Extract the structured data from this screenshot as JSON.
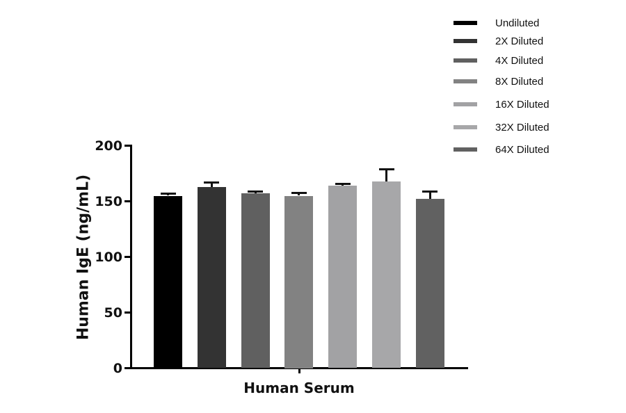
{
  "chart_data": {
    "type": "bar",
    "title": "",
    "xlabel": "Human Serum",
    "ylabel": "Human IgE (ng/mL)",
    "ylim": [
      0,
      200
    ],
    "yticks": [
      0,
      50,
      100,
      150,
      200
    ],
    "grid": false,
    "legend_position": "top-right",
    "categories": [
      "Human Serum"
    ],
    "series": [
      {
        "name": "Undiluted",
        "values": [
          155
        ],
        "error": [
          2
        ],
        "color": "#000000"
      },
      {
        "name": "2X Diluted",
        "values": [
          163
        ],
        "error": [
          4
        ],
        "color": "#333333"
      },
      {
        "name": "4X Diluted",
        "values": [
          157
        ],
        "error": [
          2
        ],
        "color": "#606060"
      },
      {
        "name": "8X Diluted",
        "values": [
          155
        ],
        "error": [
          3
        ],
        "color": "#828282"
      },
      {
        "name": "16X Diluted",
        "values": [
          164
        ],
        "error": [
          2
        ],
        "color": "#a2a2a4"
      },
      {
        "name": "32X Diluted",
        "values": [
          168
        ],
        "error": [
          11
        ],
        "color": "#a7a7a9"
      },
      {
        "name": "64X Diluted",
        "values": [
          152
        ],
        "error": [
          7
        ],
        "color": "#616161"
      }
    ]
  }
}
